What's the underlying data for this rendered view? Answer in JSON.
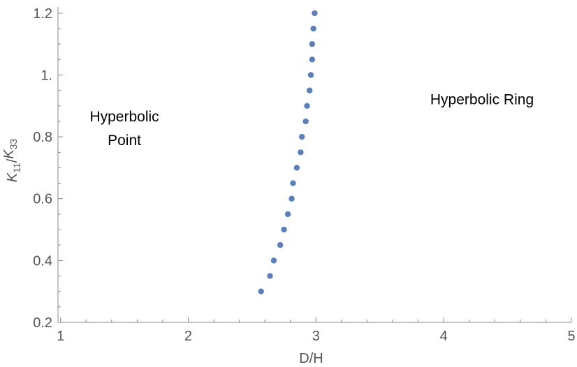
{
  "chart_data": {
    "type": "scatter",
    "xlabel": "D/H",
    "ylabel": {
      "parts": [
        {
          "text": "K",
          "italic": true
        },
        {
          "text": "11",
          "sub": true
        },
        {
          "text": "/",
          "italic": false
        },
        {
          "text": "K",
          "italic": true
        },
        {
          "text": "33",
          "sub": true
        }
      ]
    },
    "xlim": [
      0.98,
      5.0
    ],
    "ylim": [
      0.2,
      1.22
    ],
    "xticks": [
      "1",
      "2",
      "3",
      "4",
      "5"
    ],
    "yticks": [
      "0.2",
      "0.4",
      "0.6",
      "0.8",
      "1.",
      "1.2"
    ],
    "x": [
      2.57,
      2.64,
      2.67,
      2.72,
      2.75,
      2.78,
      2.81,
      2.82,
      2.85,
      2.88,
      2.89,
      2.92,
      2.93,
      2.95,
      2.96,
      2.97,
      2.97,
      2.98,
      2.99
    ],
    "y": [
      0.3,
      0.35,
      0.4,
      0.45,
      0.5,
      0.55,
      0.6,
      0.65,
      0.7,
      0.75,
      0.8,
      0.85,
      0.9,
      0.95,
      1.0,
      1.05,
      1.1,
      1.15,
      1.2
    ],
    "point_color": "#5b7fbc",
    "annotations": [
      {
        "lines": [
          "Hyperbolic",
          "Point"
        ],
        "x": 1.5,
        "y": 0.85
      },
      {
        "lines": [
          "Hyperbolic Ring"
        ],
        "x": 4.3,
        "y": 0.905
      }
    ]
  }
}
